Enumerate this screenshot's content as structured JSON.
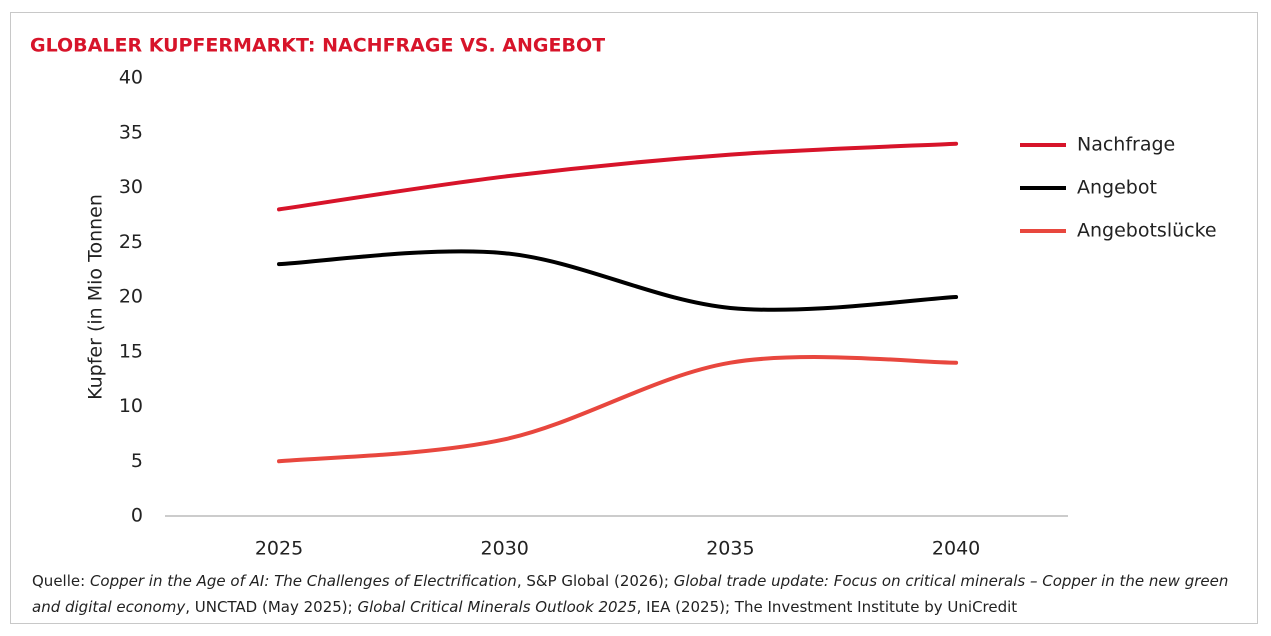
{
  "chart_data": {
    "type": "line",
    "title": "GLOBALER KUPFERMARKT: NACHFRAGE VS. ANGEBOT",
    "y_label": "Kupfer (in Mio Tonnen",
    "categories": [
      "2025",
      "2030",
      "2035",
      "2040"
    ],
    "series": [
      {
        "name": "Nachfrage",
        "color": "#d7142a",
        "values": [
          28,
          31,
          33,
          34
        ]
      },
      {
        "name": "Angebot",
        "color": "#000000",
        "values": [
          23,
          24,
          19,
          20
        ]
      },
      {
        "name": "Angebotslücke",
        "color": "#e8473e",
        "values": [
          5,
          7,
          14,
          14
        ]
      }
    ],
    "ylim": [
      0,
      40
    ],
    "yticks": [
      0,
      5,
      10,
      15,
      20,
      25,
      30,
      35,
      40
    ],
    "smooth": true,
    "legend": "right",
    "source": [
      {
        "text": "Quelle: ",
        "italic": false
      },
      {
        "text": "Copper in the Age of AI: The Challenges of Electrification",
        "italic": true
      },
      {
        "text": ", S&P Global (2026); ",
        "italic": false
      },
      {
        "text": "Global trade update: Focus on critical minerals – Copper in the new green and digital economy",
        "italic": true
      },
      {
        "text": ", UNCTAD (May 2025); ",
        "italic": false
      },
      {
        "text": "Global Critical Minerals Outlook 2025",
        "italic": true
      },
      {
        "text": ", IEA (2025); The Investment Institute by UniCredit",
        "italic": false
      }
    ]
  }
}
